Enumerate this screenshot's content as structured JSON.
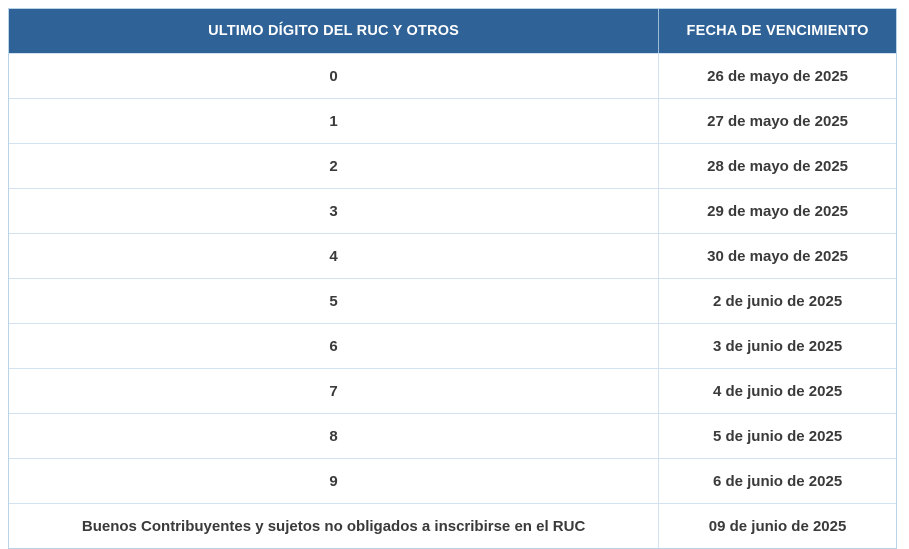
{
  "colors": {
    "header_bg": "#2f6296",
    "header_text": "#ffffff",
    "body_text": "#3a3a3a",
    "row_border": "#d2e2f0",
    "outer_border": "#b9d3e8"
  },
  "chart_data": {
    "type": "table",
    "columns": [
      "ULTIMO DÍGITO DEL RUC Y OTROS",
      "FECHA DE VENCIMIENTO"
    ],
    "rows": [
      [
        "0",
        "26 de mayo de 2025"
      ],
      [
        "1",
        "27 de mayo de 2025"
      ],
      [
        "2",
        "28 de mayo de 2025"
      ],
      [
        "3",
        "29 de mayo de 2025"
      ],
      [
        "4",
        "30 de mayo de 2025"
      ],
      [
        "5",
        "2 de junio de 2025"
      ],
      [
        "6",
        "3 de junio de 2025"
      ],
      [
        "7",
        "4 de junio de 2025"
      ],
      [
        "8",
        "5 de junio de 2025"
      ],
      [
        "9",
        "6 de junio de 2025"
      ],
      [
        "Buenos Contribuyentes y sujetos no obligados a inscribirse en el RUC",
        "09 de junio de 2025"
      ]
    ]
  }
}
